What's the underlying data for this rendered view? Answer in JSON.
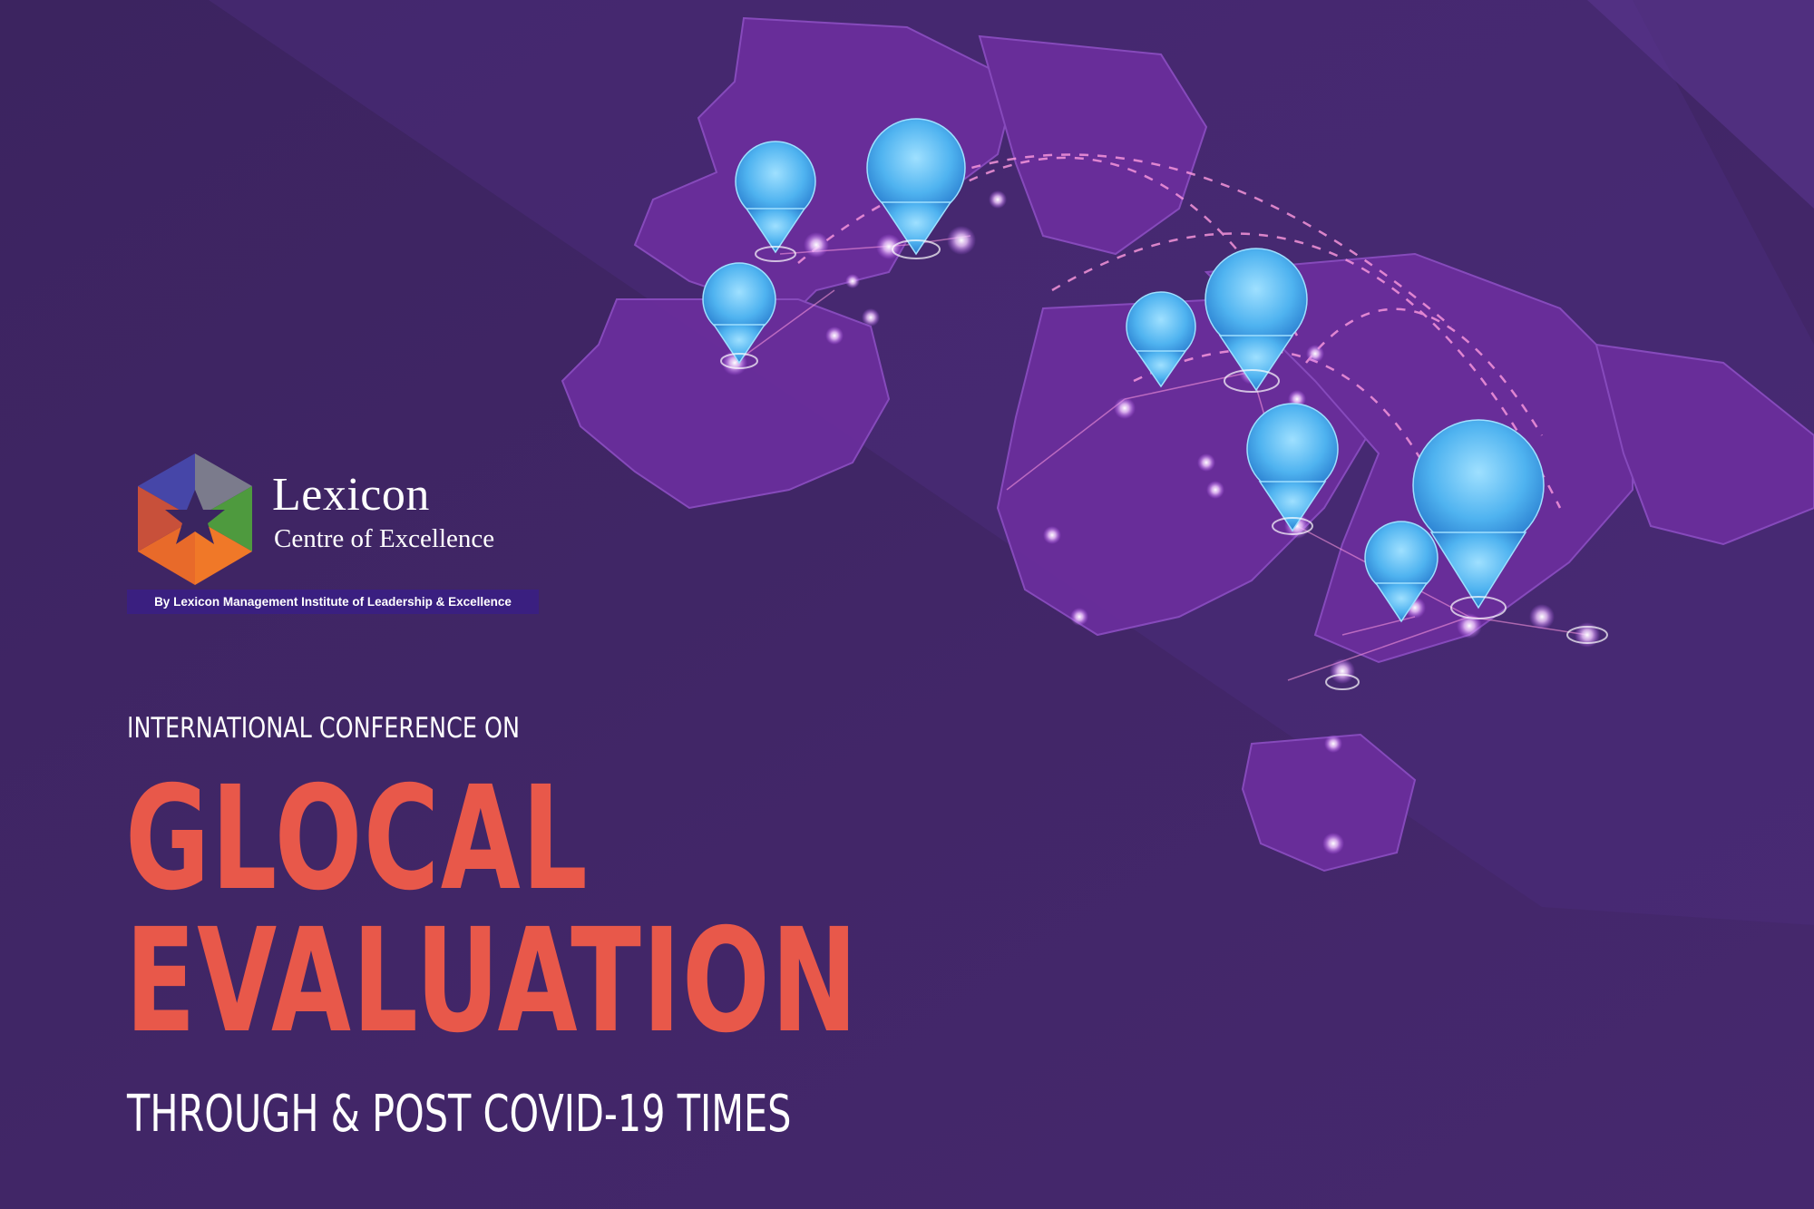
{
  "colors": {
    "background": "#3f2566",
    "map_land": "#6a2e9c",
    "title_accent": "#e8584a",
    "pin": "#4fb3f0",
    "strip": "#3a1f80"
  },
  "logo": {
    "name": "Lexicon",
    "tagline": "Centre of Excellence",
    "strip": "By Lexicon Management Institute of Leadership & Excellence",
    "icon": "hexagon-star-icon"
  },
  "headline": {
    "kicker": "INTERNATIONAL CONFERENCE ON",
    "line1": "GLOCAL",
    "line2": "EVALUATION",
    "subtitle": "THROUGH & POST COVID-19 TIMES"
  },
  "illustration": {
    "description_icon": "world-map-virus-pins-icon"
  }
}
